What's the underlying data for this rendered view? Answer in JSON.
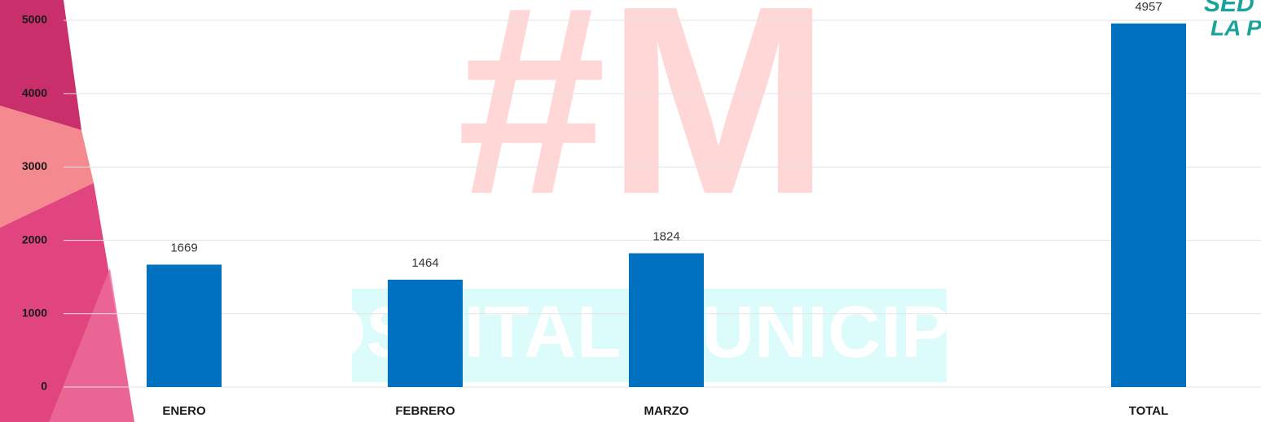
{
  "chart_data": {
    "type": "bar",
    "categories": [
      "ENERO",
      "FEBRERO",
      "MARZO",
      null,
      "TOTAL"
    ],
    "values": [
      1669,
      1464,
      1824,
      null,
      4957
    ],
    "color": "#0070c0",
    "ylim": [
      0,
      5000
    ],
    "yticks": [
      0,
      1000,
      2000,
      3000,
      4000,
      5000
    ],
    "grid": true,
    "watermark": [
      "#M",
      "HOSPITAL MUNICIPAL"
    ],
    "logo": [
      "SED",
      "LA P"
    ]
  }
}
